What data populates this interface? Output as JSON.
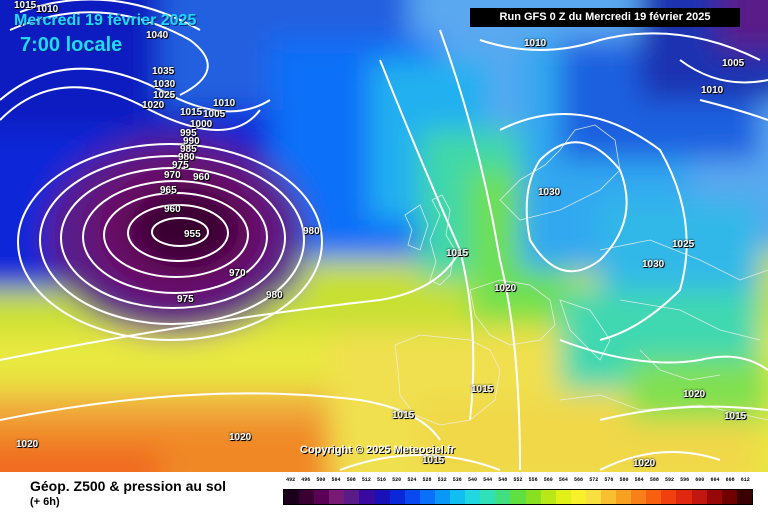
{
  "header": {
    "date": "Mercredi 19 février 2025",
    "time": "7:00 locale",
    "run": "Run GFS 0 Z du Mercredi 19 février 2025"
  },
  "copyright": "Copyright © 2025 Meteociel.fr",
  "footer": {
    "title": "Géop. Z500 & pression au sol",
    "subtitle": "(+ 6h)"
  },
  "legend": {
    "values": [
      "492",
      "496",
      "500",
      "504",
      "508",
      "512",
      "516",
      "520",
      "524",
      "528",
      "532",
      "536",
      "540",
      "544",
      "548",
      "552",
      "556",
      "560",
      "564",
      "568",
      "572",
      "576",
      "580",
      "584",
      "588",
      "592",
      "596",
      "600",
      "604",
      "608",
      "612"
    ],
    "colors": [
      "#1a001a",
      "#3a0033",
      "#5a0055",
      "#7a1a77",
      "#5a1a88",
      "#3a0aa0",
      "#1a10b8",
      "#0a28d8",
      "#0a48f0",
      "#0a70f8",
      "#0a98f8",
      "#10bef0",
      "#22d8e0",
      "#30e0b8",
      "#40e080",
      "#60e040",
      "#88e020",
      "#b8e818",
      "#e0f018",
      "#f8f028",
      "#f8e040",
      "#f8c030",
      "#f8a020",
      "#f88018",
      "#f86010",
      "#f04010",
      "#e02810",
      "#c01810",
      "#980808",
      "#700000",
      "#380000"
    ]
  },
  "isobars": [
    "1015",
    "1010",
    "1040",
    "1035",
    "1030",
    "1025",
    "1020",
    "1015",
    "1010",
    "1005",
    "1000",
    "995",
    "990",
    "985",
    "980",
    "975",
    "970",
    "965",
    "960",
    "955",
    "960",
    "970",
    "975",
    "980",
    "980",
    "1015",
    "1020",
    "1015",
    "1015",
    "1030",
    "1025",
    "1030",
    "1020",
    "1015",
    "1020",
    "1020",
    "1020",
    "1015",
    "1010",
    "1010",
    "1005"
  ]
}
